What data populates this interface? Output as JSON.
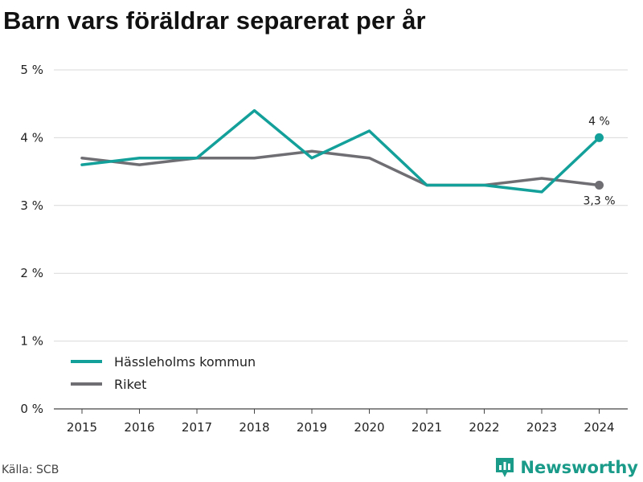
{
  "title": "Barn vars föräldrar separerat per år",
  "source": "Källa: SCB",
  "brand": {
    "name": "Newsworthy",
    "icon": "bar-chart-logo-icon"
  },
  "colors": {
    "primary": "#14a09a",
    "secondary": "#6e6e73",
    "grid": "#d9d9d9"
  },
  "chart_data": {
    "type": "line",
    "x": [
      2015,
      2016,
      2017,
      2018,
      2019,
      2020,
      2021,
      2022,
      2023,
      2024
    ],
    "series": [
      {
        "name": "Hässleholms kommun",
        "values": [
          3.6,
          3.7,
          3.7,
          4.4,
          3.7,
          4.1,
          3.3,
          3.3,
          3.2,
          4.0
        ],
        "color": "#14a09a",
        "end_label": "4 %"
      },
      {
        "name": "Riket",
        "values": [
          3.7,
          3.6,
          3.7,
          3.7,
          3.8,
          3.7,
          3.3,
          3.3,
          3.4,
          3.3
        ],
        "color": "#6e6e73",
        "end_label": "3,3 %"
      }
    ],
    "ylim": [
      0,
      5
    ],
    "yticks": [
      0,
      1,
      2,
      3,
      4,
      5
    ],
    "ytick_labels": [
      "0 %",
      "1 %",
      "2 %",
      "3 %",
      "4 %",
      "5 %"
    ],
    "xtick_labels": [
      "2015",
      "2016",
      "2017",
      "2018",
      "2019",
      "2020",
      "2021",
      "2022",
      "2023",
      "2024"
    ],
    "grid": "horizontal",
    "legend_position": "bottom-left"
  }
}
